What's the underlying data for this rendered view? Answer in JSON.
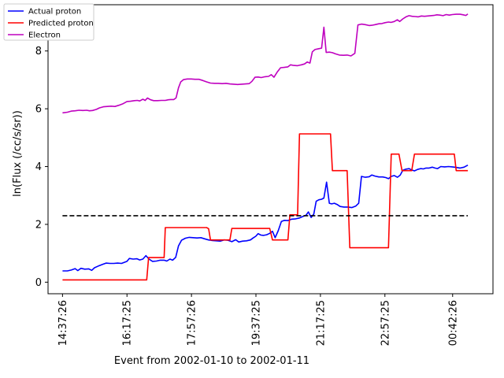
{
  "chart_data": {
    "type": "line",
    "title": "",
    "xlabel": "Event from 2002-01-10 to 2002-01-11",
    "ylabel": "ln(Flux (/cc/s/sr))",
    "xlim_hours": [
      14.25,
      25.75
    ],
    "ylim": [
      -0.4,
      9.6
    ],
    "yticks": [
      0,
      2,
      4,
      6,
      8
    ],
    "xticks": [
      {
        "label": "14:37:26",
        "hour": 14.6239
      },
      {
        "label": "16:17:25",
        "hour": 16.2903
      },
      {
        "label": "17:57:26",
        "hour": 17.9572
      },
      {
        "label": "19:37:25",
        "hour": 19.6236
      },
      {
        "label": "21:17:25",
        "hour": 21.2903
      },
      {
        "label": "22:57:25",
        "hour": 22.9569
      },
      {
        "label": "00:42:26",
        "hour": 24.7072
      }
    ],
    "grid": false,
    "legend_position": "top-left",
    "threshold": {
      "y": 2.3,
      "x_range_hours": [
        14.6239,
        25.1
      ],
      "style": "dashed",
      "color": "#000000"
    },
    "series": [
      {
        "name": "Actual proton",
        "color": "#0000ff",
        "points": [
          [
            14.6239,
            0.39
          ],
          [
            14.75,
            0.39
          ],
          [
            14.85,
            0.42
          ],
          [
            14.95,
            0.47
          ],
          [
            15.02,
            0.4
          ],
          [
            15.1,
            0.48
          ],
          [
            15.2,
            0.45
          ],
          [
            15.3,
            0.46
          ],
          [
            15.38,
            0.41
          ],
          [
            15.45,
            0.5
          ],
          [
            15.55,
            0.56
          ],
          [
            15.65,
            0.61
          ],
          [
            15.75,
            0.66
          ],
          [
            15.85,
            0.65
          ],
          [
            15.95,
            0.65
          ],
          [
            16.05,
            0.66
          ],
          [
            16.15,
            0.65
          ],
          [
            16.29,
            0.72
          ],
          [
            16.35,
            0.82
          ],
          [
            16.45,
            0.8
          ],
          [
            16.55,
            0.81
          ],
          [
            16.62,
            0.77
          ],
          [
            16.7,
            0.8
          ],
          [
            16.78,
            0.92
          ],
          [
            16.86,
            0.8
          ],
          [
            16.95,
            0.72
          ],
          [
            17.05,
            0.73
          ],
          [
            17.15,
            0.76
          ],
          [
            17.25,
            0.76
          ],
          [
            17.32,
            0.73
          ],
          [
            17.4,
            0.8
          ],
          [
            17.47,
            0.76
          ],
          [
            17.55,
            0.86
          ],
          [
            17.62,
            1.25
          ],
          [
            17.7,
            1.45
          ],
          [
            17.8,
            1.52
          ],
          [
            17.9,
            1.55
          ],
          [
            18.0,
            1.54
          ],
          [
            18.1,
            1.53
          ],
          [
            18.2,
            1.54
          ],
          [
            18.3,
            1.5
          ],
          [
            18.4,
            1.46
          ],
          [
            18.5,
            1.44
          ],
          [
            18.6,
            1.43
          ],
          [
            18.7,
            1.42
          ],
          [
            18.8,
            1.46
          ],
          [
            18.9,
            1.45
          ],
          [
            19.0,
            1.4
          ],
          [
            19.1,
            1.47
          ],
          [
            19.18,
            1.39
          ],
          [
            19.28,
            1.42
          ],
          [
            19.38,
            1.43
          ],
          [
            19.48,
            1.46
          ],
          [
            19.55,
            1.53
          ],
          [
            19.62,
            1.59
          ],
          [
            19.68,
            1.68
          ],
          [
            19.75,
            1.63
          ],
          [
            19.82,
            1.62
          ],
          [
            19.9,
            1.64
          ],
          [
            19.98,
            1.69
          ],
          [
            20.05,
            1.76
          ],
          [
            20.12,
            1.54
          ],
          [
            20.2,
            1.78
          ],
          [
            20.28,
            2.1
          ],
          [
            20.36,
            2.14
          ],
          [
            20.45,
            2.13
          ],
          [
            20.55,
            2.18
          ],
          [
            20.65,
            2.19
          ],
          [
            20.75,
            2.22
          ],
          [
            20.83,
            2.27
          ],
          [
            20.92,
            2.32
          ],
          [
            20.98,
            2.43
          ],
          [
            21.05,
            2.24
          ],
          [
            21.12,
            2.36
          ],
          [
            21.18,
            2.8
          ],
          [
            21.25,
            2.85
          ],
          [
            21.32,
            2.87
          ],
          [
            21.38,
            2.91
          ],
          [
            21.45,
            3.46
          ],
          [
            21.52,
            2.73
          ],
          [
            21.58,
            2.71
          ],
          [
            21.65,
            2.73
          ],
          [
            21.72,
            2.69
          ],
          [
            21.8,
            2.62
          ],
          [
            21.9,
            2.6
          ],
          [
            22.0,
            2.6
          ],
          [
            22.1,
            2.58
          ],
          [
            22.2,
            2.63
          ],
          [
            22.28,
            2.73
          ],
          [
            22.35,
            3.66
          ],
          [
            22.45,
            3.63
          ],
          [
            22.55,
            3.65
          ],
          [
            22.62,
            3.71
          ],
          [
            22.7,
            3.67
          ],
          [
            22.8,
            3.64
          ],
          [
            22.9,
            3.64
          ],
          [
            22.98,
            3.62
          ],
          [
            23.05,
            3.58
          ],
          [
            23.12,
            3.66
          ],
          [
            23.2,
            3.69
          ],
          [
            23.28,
            3.63
          ],
          [
            23.35,
            3.7
          ],
          [
            23.42,
            3.87
          ],
          [
            23.5,
            3.91
          ],
          [
            23.58,
            3.93
          ],
          [
            23.65,
            3.88
          ],
          [
            23.72,
            3.85
          ],
          [
            23.8,
            3.9
          ],
          [
            23.88,
            3.93
          ],
          [
            23.95,
            3.92
          ],
          [
            24.02,
            3.95
          ],
          [
            24.1,
            3.95
          ],
          [
            24.18,
            3.98
          ],
          [
            24.25,
            3.95
          ],
          [
            24.32,
            3.93
          ],
          [
            24.4,
            4.0
          ],
          [
            24.5,
            3.99
          ],
          [
            24.6,
            4.0
          ],
          [
            24.7,
            3.99
          ],
          [
            24.8,
            3.97
          ],
          [
            24.9,
            3.95
          ],
          [
            25.0,
            3.98
          ],
          [
            25.1,
            4.05
          ]
        ]
      },
      {
        "name": "Predicted proton",
        "color": "#ff0000",
        "points": [
          [
            14.6239,
            0.08
          ],
          [
            16.8,
            0.08
          ],
          [
            16.85,
            0.85
          ],
          [
            17.25,
            0.85
          ],
          [
            17.28,
            1.89
          ],
          [
            18.35,
            1.89
          ],
          [
            18.4,
            1.85
          ],
          [
            18.45,
            1.46
          ],
          [
            18.95,
            1.46
          ],
          [
            19.0,
            1.86
          ],
          [
            19.98,
            1.86
          ],
          [
            20.05,
            1.46
          ],
          [
            20.45,
            1.46
          ],
          [
            20.5,
            2.33
          ],
          [
            20.7,
            2.33
          ],
          [
            20.75,
            5.13
          ],
          [
            21.55,
            5.13
          ],
          [
            21.6,
            3.86
          ],
          [
            21.98,
            3.86
          ],
          [
            22.05,
            1.19
          ],
          [
            23.05,
            1.19
          ],
          [
            23.12,
            4.43
          ],
          [
            23.32,
            4.43
          ],
          [
            23.4,
            3.86
          ],
          [
            23.65,
            3.86
          ],
          [
            23.72,
            4.43
          ],
          [
            24.75,
            4.43
          ],
          [
            24.8,
            3.86
          ],
          [
            25.1,
            3.86
          ]
        ]
      },
      {
        "name": "Electron",
        "color": "#bf00bf",
        "points": [
          [
            14.6239,
            5.86
          ],
          [
            14.75,
            5.88
          ],
          [
            14.85,
            5.92
          ],
          [
            14.95,
            5.93
          ],
          [
            15.05,
            5.95
          ],
          [
            15.15,
            5.94
          ],
          [
            15.25,
            5.95
          ],
          [
            15.32,
            5.93
          ],
          [
            15.4,
            5.94
          ],
          [
            15.5,
            5.98
          ],
          [
            15.58,
            6.03
          ],
          [
            15.68,
            6.07
          ],
          [
            15.78,
            6.08
          ],
          [
            15.88,
            6.09
          ],
          [
            15.98,
            6.08
          ],
          [
            16.08,
            6.12
          ],
          [
            16.18,
            6.17
          ],
          [
            16.29,
            6.25
          ],
          [
            16.38,
            6.26
          ],
          [
            16.48,
            6.28
          ],
          [
            16.56,
            6.29
          ],
          [
            16.62,
            6.27
          ],
          [
            16.7,
            6.33
          ],
          [
            16.76,
            6.29
          ],
          [
            16.82,
            6.37
          ],
          [
            16.9,
            6.31
          ],
          [
            16.98,
            6.28
          ],
          [
            17.08,
            6.28
          ],
          [
            17.18,
            6.29
          ],
          [
            17.28,
            6.29
          ],
          [
            17.36,
            6.31
          ],
          [
            17.42,
            6.32
          ],
          [
            17.5,
            6.32
          ],
          [
            17.56,
            6.38
          ],
          [
            17.62,
            6.72
          ],
          [
            17.68,
            6.93
          ],
          [
            17.75,
            7.01
          ],
          [
            17.85,
            7.03
          ],
          [
            17.95,
            7.03
          ],
          [
            18.05,
            7.02
          ],
          [
            18.15,
            7.02
          ],
          [
            18.25,
            6.98
          ],
          [
            18.35,
            6.93
          ],
          [
            18.45,
            6.89
          ],
          [
            18.55,
            6.88
          ],
          [
            18.65,
            6.88
          ],
          [
            18.75,
            6.87
          ],
          [
            18.85,
            6.88
          ],
          [
            18.95,
            6.86
          ],
          [
            19.05,
            6.85
          ],
          [
            19.15,
            6.84
          ],
          [
            19.25,
            6.85
          ],
          [
            19.35,
            6.86
          ],
          [
            19.45,
            6.87
          ],
          [
            19.52,
            6.95
          ],
          [
            19.6,
            7.09
          ],
          [
            19.68,
            7.1
          ],
          [
            19.76,
            7.08
          ],
          [
            19.86,
            7.11
          ],
          [
            19.95,
            7.12
          ],
          [
            20.02,
            7.18
          ],
          [
            20.09,
            7.09
          ],
          [
            20.18,
            7.28
          ],
          [
            20.26,
            7.42
          ],
          [
            20.35,
            7.43
          ],
          [
            20.45,
            7.45
          ],
          [
            20.52,
            7.52
          ],
          [
            20.6,
            7.5
          ],
          [
            20.7,
            7.49
          ],
          [
            20.8,
            7.52
          ],
          [
            20.88,
            7.55
          ],
          [
            20.95,
            7.62
          ],
          [
            21.02,
            7.58
          ],
          [
            21.08,
            7.97
          ],
          [
            21.15,
            8.05
          ],
          [
            21.25,
            8.08
          ],
          [
            21.32,
            8.1
          ],
          [
            21.38,
            8.82
          ],
          [
            21.44,
            7.95
          ],
          [
            21.52,
            7.96
          ],
          [
            21.6,
            7.94
          ],
          [
            21.68,
            7.9
          ],
          [
            21.78,
            7.86
          ],
          [
            21.88,
            7.85
          ],
          [
            21.98,
            7.86
          ],
          [
            22.08,
            7.83
          ],
          [
            22.18,
            7.92
          ],
          [
            22.26,
            8.9
          ],
          [
            22.35,
            8.93
          ],
          [
            22.45,
            8.91
          ],
          [
            22.55,
            8.88
          ],
          [
            22.62,
            8.89
          ],
          [
            22.7,
            8.91
          ],
          [
            22.8,
            8.94
          ],
          [
            22.88,
            8.95
          ],
          [
            22.96,
            8.98
          ],
          [
            23.05,
            9.0
          ],
          [
            23.12,
            8.99
          ],
          [
            23.2,
            9.02
          ],
          [
            23.28,
            9.08
          ],
          [
            23.34,
            9.02
          ],
          [
            23.42,
            9.11
          ],
          [
            23.5,
            9.18
          ],
          [
            23.58,
            9.22
          ],
          [
            23.66,
            9.2
          ],
          [
            23.74,
            9.19
          ],
          [
            23.82,
            9.18
          ],
          [
            23.9,
            9.21
          ],
          [
            23.98,
            9.2
          ],
          [
            24.06,
            9.21
          ],
          [
            24.14,
            9.22
          ],
          [
            24.22,
            9.23
          ],
          [
            24.3,
            9.25
          ],
          [
            24.38,
            9.24
          ],
          [
            24.46,
            9.22
          ],
          [
            24.54,
            9.26
          ],
          [
            24.62,
            9.24
          ],
          [
            24.7,
            9.26
          ],
          [
            24.8,
            9.27
          ],
          [
            24.9,
            9.27
          ],
          [
            24.98,
            9.25
          ],
          [
            25.05,
            9.23
          ],
          [
            25.1,
            9.28
          ]
        ]
      }
    ]
  }
}
